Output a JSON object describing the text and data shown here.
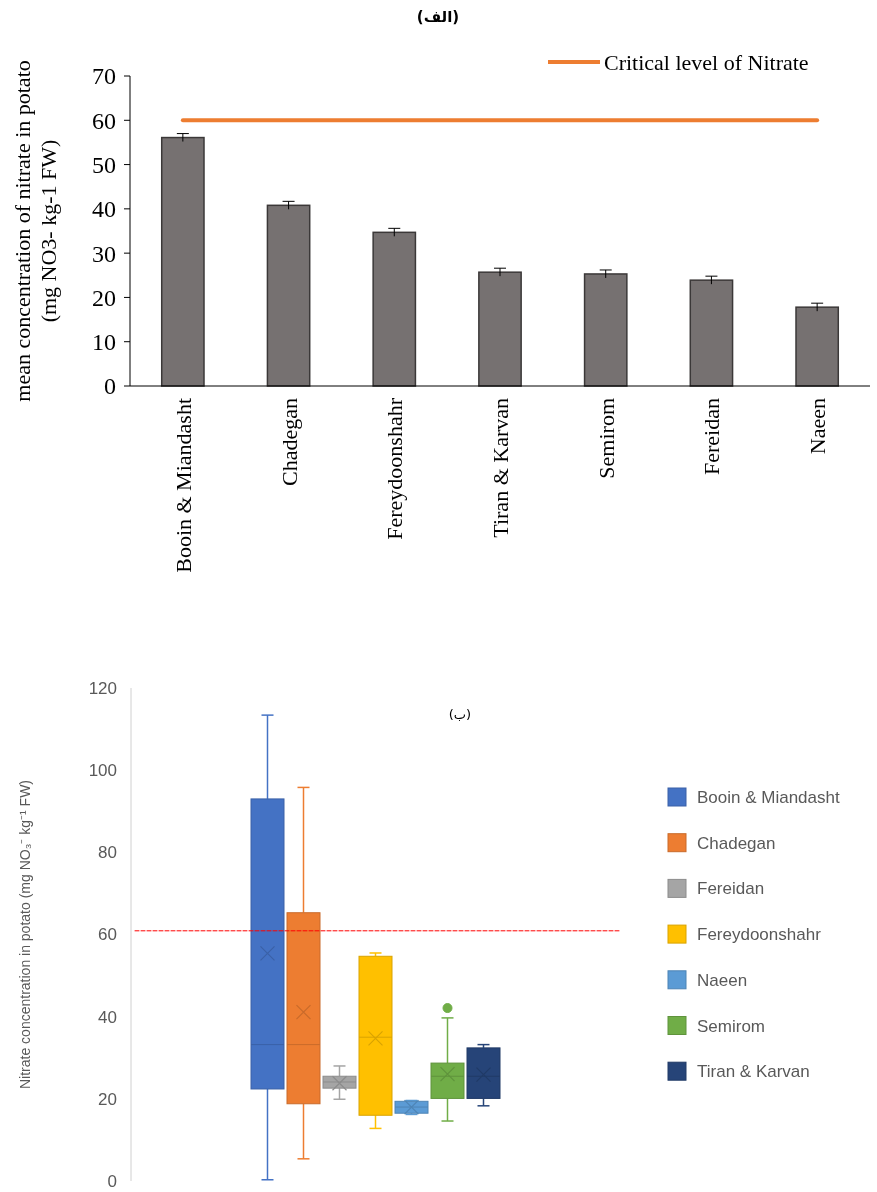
{
  "chart_data": [
    {
      "type": "bar",
      "title": "(الف)",
      "ylabel": "mean concentration of nitrate in potato\n(mg NO3- kg-1 FW)",
      "categories": [
        "Booin & Miandasht",
        "Chadegan",
        "Fereydoonshahr",
        "Tiran & Karvan",
        "Semirom",
        "Fereidan",
        "Naeen"
      ],
      "values": [
        56.1,
        40.8,
        34.7,
        25.7,
        25.3,
        23.9,
        17.8
      ],
      "errors": [
        0.9,
        0.9,
        0.9,
        0.9,
        0.9,
        0.9,
        0.9
      ],
      "color": "#767171",
      "ylim": [
        0,
        70
      ],
      "yticks": [
        0,
        10,
        20,
        30,
        40,
        50,
        60,
        70
      ],
      "ref_lines": [
        {
          "axis": "y",
          "value": 60,
          "label": "Critical level of Nitrate",
          "color": "#ed7d31"
        }
      ],
      "legend": "top right"
    },
    {
      "type": "box",
      "title": "(ب)",
      "ylabel": "Nitrate concentration in potato (mg NO₃⁻ kg⁻¹ FW)",
      "categories": [
        null
      ],
      "series": [
        {
          "name": "Booin & Miandasht",
          "color": "#4472c4",
          "boxes": [
            {
              "low": 0.3,
              "q1": 22.4,
              "median": 33.2,
              "q3": 93.0,
              "high": 113.4,
              "mean": 55.4
            }
          ]
        },
        {
          "name": "Chadegan",
          "color": "#ed7d31",
          "boxes": [
            {
              "low": 5.4,
              "q1": 18.8,
              "median": 33.2,
              "q3": 65.3,
              "high": 95.8,
              "mean": 41.1
            }
          ]
        },
        {
          "name": "Fereidan",
          "color": "#a5a5a5",
          "boxes": [
            {
              "low": 19.9,
              "q1": 22.6,
              "median": 24.1,
              "q3": 25.5,
              "high": 28.0,
              "mean": 23.8
            }
          ]
        },
        {
          "name": "Fereydoonshahr",
          "color": "#ffc000",
          "boxes": [
            {
              "low": 12.8,
              "q1": 16.0,
              "median": 35.0,
              "q3": 54.7,
              "high": 55.5,
              "mean": 34.7
            }
          ]
        },
        {
          "name": "Naeen",
          "color": "#5b9bd5",
          "boxes": [
            {
              "low": 16.2,
              "q1": 16.5,
              "median": 18.0,
              "q3": 19.4,
              "high": 19.6,
              "mean": 18.0
            }
          ]
        },
        {
          "name": "Semirom",
          "color": "#70ad47",
          "boxes": [
            {
              "low": 14.6,
              "q1": 20.1,
              "median": 25.5,
              "q3": 28.7,
              "high": 39.7,
              "mean": 26.0,
              "outliers": [
                42.1
              ]
            }
          ]
        },
        {
          "name": "Tiran & Karvan",
          "color": "#264478",
          "boxes": [
            {
              "low": 18.3,
              "q1": 20.1,
              "median": 25.5,
              "q3": 32.4,
              "high": 33.2,
              "mean": 25.9
            }
          ]
        }
      ],
      "ylim": [
        0,
        120
      ],
      "yticks": [
        0,
        20,
        40,
        60,
        80,
        100,
        120
      ],
      "ref_lines": [
        {
          "axis": "y",
          "value": 60.9,
          "color": "#ff0000",
          "line_style": "dashed"
        }
      ],
      "legend": "right"
    }
  ]
}
